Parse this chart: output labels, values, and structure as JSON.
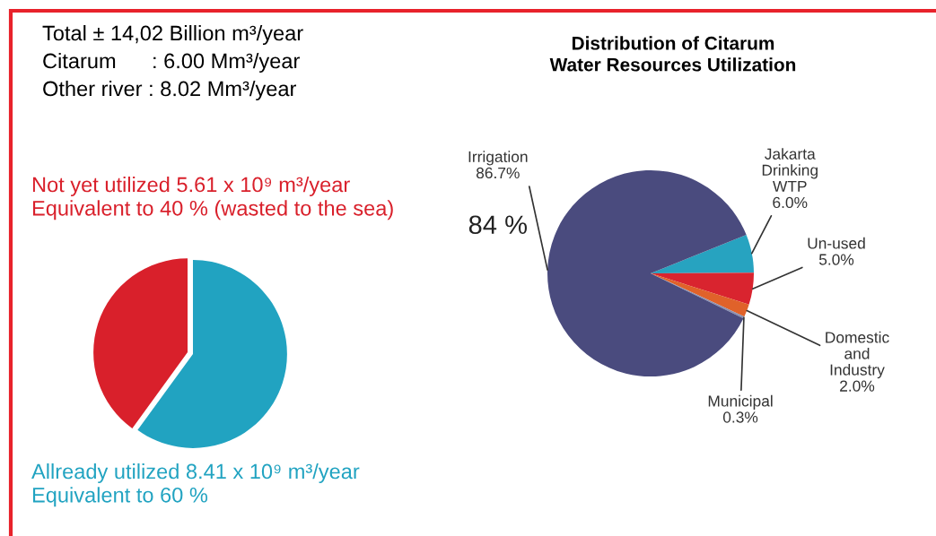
{
  "chart_data": [
    {
      "type": "pie",
      "categories": [
        "Not yet utilized 5.61 x 10⁹ m³/year\nEquivalent to 40 % (wasted to the sea)",
        "Allready utilized 8.41 x 10⁹ m³/year\nEquivalent to 60 %"
      ],
      "values": [
        40,
        60
      ],
      "colors": [
        "#d9202b",
        "#21a3c1"
      ],
      "annotations": [
        "Total ± 14,02 Billion m³/year",
        "Citarum      : 6.00 Mm³/year",
        "Other river : 8.02 Mm³/year"
      ]
    },
    {
      "type": "pie",
      "title": "Distribution of Citarum\nWater Resources Utilization",
      "categories": [
        "Jakarta Drinking WTP",
        "Un-used",
        "Domestic and Industry",
        "Municipal",
        "Irrigation"
      ],
      "values": [
        6.0,
        5.0,
        2.0,
        0.3,
        86.7
      ],
      "colors": [
        "#27a3c0",
        "#d9242f",
        "#e0622a",
        "#8a8fb0",
        "#4a4b7e"
      ],
      "value_labels": [
        "6.0%",
        "5.0%",
        "2.0%",
        "0.3%",
        "86.7%"
      ],
      "annotations": [
        "84 %"
      ]
    }
  ]
}
